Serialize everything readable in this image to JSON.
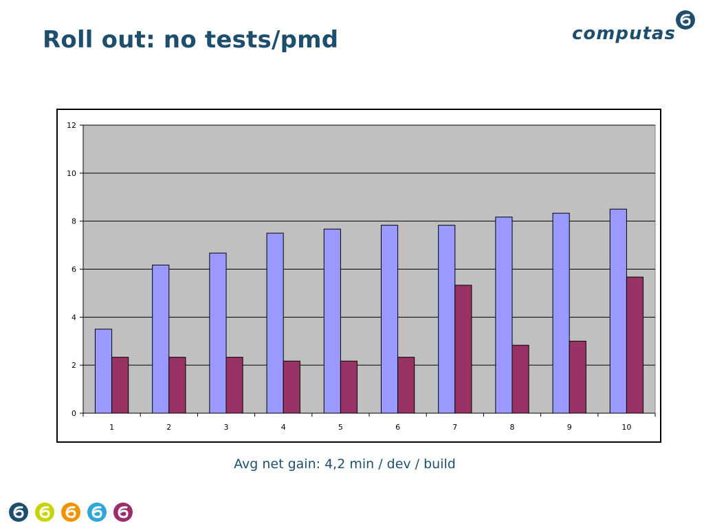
{
  "slide": {
    "title": "Roll out: no tests/pmd",
    "caption": "Avg net gain: 4,2 min / dev / build"
  },
  "brand": {
    "name": "computas",
    "color": "#1e4e6e"
  },
  "footer": {
    "marks": [
      {
        "icon": "computas-swirl-icon",
        "color": "#1e4e6e"
      },
      {
        "icon": "computas-swirl-icon",
        "color": "#c8d400"
      },
      {
        "icon": "computas-swirl-icon",
        "color": "#f39200"
      },
      {
        "icon": "computas-swirl-icon",
        "color": "#2fa8d8"
      },
      {
        "icon": "computas-swirl-icon",
        "color": "#9b2d6b"
      }
    ]
  },
  "chart_data": {
    "type": "bar",
    "title": "",
    "xlabel": "",
    "ylabel": "",
    "categories": [
      "1",
      "2",
      "3",
      "4",
      "5",
      "6",
      "7",
      "8",
      "9",
      "10"
    ],
    "series": [
      {
        "color": "#9999ff",
        "values": [
          3.5,
          6.17,
          6.67,
          7.5,
          7.67,
          7.83,
          7.83,
          8.17,
          8.33,
          8.5
        ]
      },
      {
        "color": "#993366",
        "values": [
          2.33,
          2.33,
          2.33,
          2.17,
          2.17,
          2.33,
          5.33,
          2.83,
          3.0,
          5.67
        ]
      }
    ],
    "ylim": [
      0,
      12
    ],
    "yticks": [
      0,
      2,
      4,
      6,
      8,
      10,
      12
    ],
    "grid": true,
    "legend": "none",
    "plot_background": "#c0c0c0"
  }
}
